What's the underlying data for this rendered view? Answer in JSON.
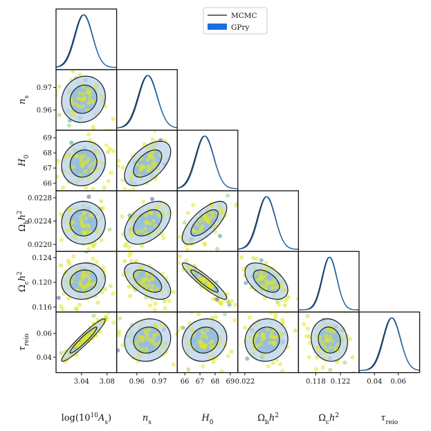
{
  "chart_data": {
    "type": "scatter",
    "title": "",
    "params": [
      {
        "key": "logA",
        "sub": "",
        "ticks": [
          3.04,
          3.08
        ],
        "tick_labels": [
          "3.04",
          "3.08"
        ],
        "range": [
          3.0,
          3.095
        ],
        "mean": 3.043,
        "sigma": 0.014
      },
      {
        "key": "ns",
        "sub": "s",
        "ticks": [
          0.96,
          0.97
        ],
        "tick_labels": [
          "0.96",
          "0.97"
        ],
        "range": [
          0.951,
          0.978
        ],
        "mean": 0.9648,
        "sigma": 0.0042
      },
      {
        "key": "H0",
        "sub": "0",
        "ticks": [
          66,
          67,
          68,
          69
        ],
        "tick_labels": [
          "66",
          "67",
          "68",
          "69"
        ],
        "range": [
          65.5,
          69.5
        ],
        "mean": 67.3,
        "sigma": 0.6
      },
      {
        "key": "Obh2",
        "sub": "b",
        "ticks": [
          0.022,
          0.0224,
          0.0228
        ],
        "tick_labels": [
          "0.0220",
          "0.0224",
          "0.0228"
        ],
        "range": [
          0.02188,
          0.02292
        ],
        "mean": 0.02237,
        "sigma": 0.00015
      },
      {
        "key": "Och2",
        "sub": "c",
        "ticks": [
          0.116,
          0.12,
          0.124
        ],
        "tick_labels": [
          "0.116",
          "0.120",
          "0.124"
        ],
        "range": [
          0.1152,
          0.125
        ],
        "mean": 0.1202,
        "sigma": 0.0012
      },
      {
        "key": "tau",
        "sub": "reio",
        "ticks": [
          0.04,
          0.06
        ],
        "tick_labels": [
          "0.04",
          "0.06"
        ],
        "range": [
          0.027,
          0.078
        ],
        "mean": 0.0544,
        "sigma": 0.0073
      }
    ],
    "x_tick_labels": [
      [
        "3.04",
        "3.08"
      ],
      [
        "0.96",
        "0.97"
      ],
      [
        "66",
        "67",
        "68",
        "69"
      ],
      [
        "0.022"
      ],
      [
        "0.118",
        "0.122"
      ],
      [
        "0.04",
        "0.06"
      ]
    ],
    "x_tick_values": [
      [
        3.04,
        3.08
      ],
      [
        0.96,
        0.97
      ],
      [
        66,
        67,
        68,
        69
      ],
      [
        0.022
      ],
      [
        0.118,
        0.122
      ],
      [
        0.04,
        0.06
      ]
    ],
    "correlations": [
      [
        1.0,
        0.1,
        0.1,
        0.0,
        0.1,
        0.95
      ],
      [
        0.1,
        1.0,
        0.55,
        0.45,
        -0.55,
        0.1
      ],
      [
        0.1,
        0.55,
        1.0,
        0.7,
        -0.92,
        0.1
      ],
      [
        0.0,
        0.45,
        0.7,
        1.0,
        -0.5,
        0.05
      ],
      [
        0.1,
        -0.55,
        -0.92,
        -0.5,
        1.0,
        -0.1
      ],
      [
        0.95,
        0.1,
        0.1,
        0.05,
        -0.1,
        1.0
      ]
    ],
    "legend": [
      {
        "label": "MCMC",
        "style": "line",
        "color": "#000000"
      },
      {
        "label": "GPry",
        "style": "patch",
        "color": "#1a6fe0"
      }
    ],
    "colors": {
      "mcmc": "#111111",
      "gpry_line": "#1f6db5",
      "gpry_fill_outer": "#b9d3ea",
      "gpry_fill_inner": "#8cb6df",
      "points": [
        "#e2e81f",
        "#cfe12a",
        "#9ad26a",
        "#3f9e9e",
        "#5a5a9c"
      ]
    }
  }
}
